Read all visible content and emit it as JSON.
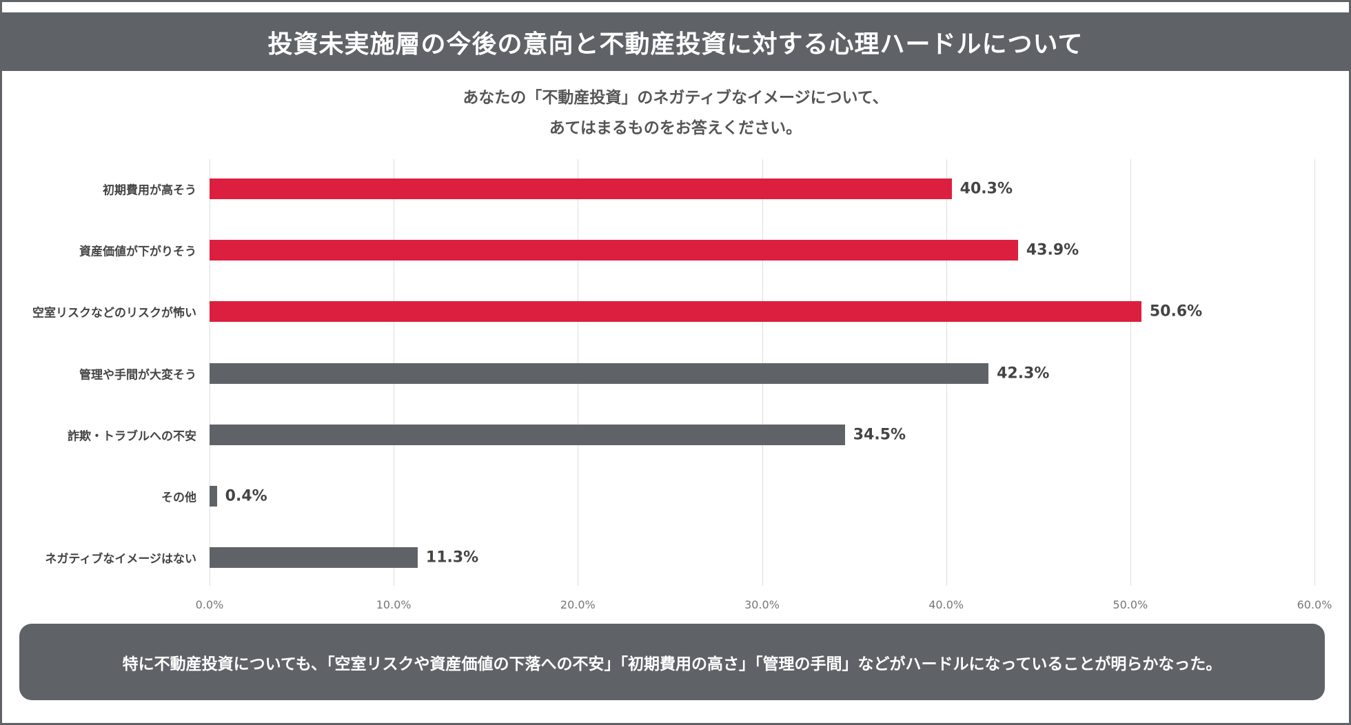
{
  "title": "投資未実施層の今後の意向と不動産投資に対する心理ハードルについて",
  "question": [
    "あなたの「不動産投資」のネガティブなイメージについて、",
    "あてはまるものをお答えください。"
  ],
  "chart_data": {
    "type": "bar",
    "orientation": "horizontal",
    "categories": [
      "初期費用が高そう",
      "資産価値が下がりそう",
      "空室リスクなどのリスクが怖い",
      "管理や手間が大変そう",
      "詐欺・トラブルへの不安",
      "その他",
      "ネガティブなイメージはない"
    ],
    "values": [
      40.3,
      43.9,
      50.6,
      42.3,
      34.5,
      0.4,
      11.3
    ],
    "value_labels": [
      "40.3%",
      "43.9%",
      "50.6%",
      "42.3%",
      "34.5%",
      "0.4%",
      "11.3%"
    ],
    "highlight": [
      true,
      true,
      true,
      false,
      false,
      false,
      false
    ],
    "xlim": [
      0,
      60
    ],
    "xticks": [
      "0.0%",
      "10.0%",
      "20.0%",
      "30.0%",
      "40.0%",
      "50.0%",
      "60.0%"
    ],
    "grid": true,
    "colors": {
      "highlight": "#dc1f3f",
      "normal": "#5f6368"
    }
  },
  "note": "特に不動産投資についても、「空室リスクや資産価値の下落への不安」「初期費用の高さ」「管理の手間」などがハードルになっていることが明らかなった。"
}
